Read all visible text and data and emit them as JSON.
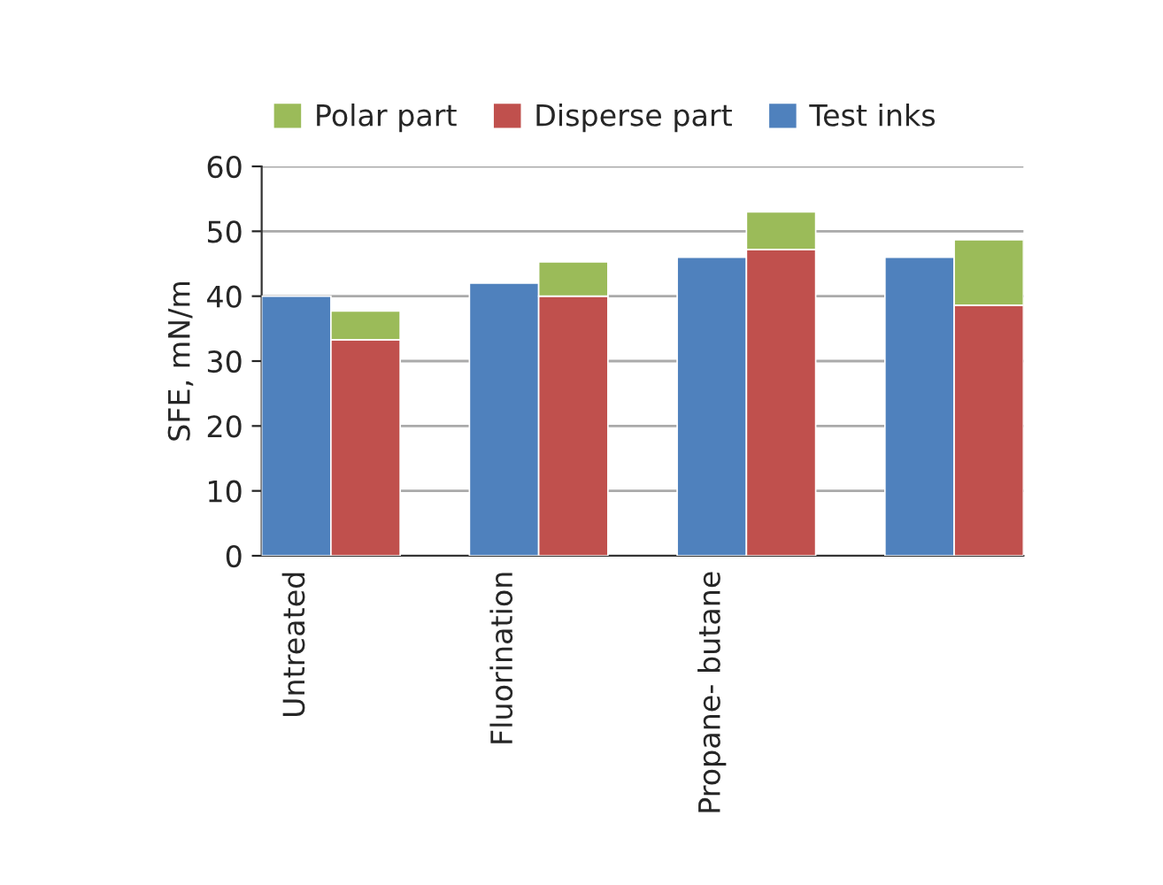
{
  "chart_data": {
    "type": "bar",
    "ylabel": "SFE, mN/m",
    "categories": [
      "Untreated",
      null,
      null,
      "Fluorination",
      null,
      null,
      "Propane- butane",
      null,
      null,
      null,
      null
    ],
    "stacked": true,
    "series": [
      {
        "name": "Test inks",
        "color": "#4f81bd",
        "values": [
          40,
          null,
          null,
          42,
          null,
          null,
          46,
          null,
          null,
          46,
          null
        ]
      },
      {
        "name": "Disperse part",
        "color": "#c0504d",
        "values": [
          null,
          33.3,
          null,
          null,
          40,
          null,
          null,
          47.2,
          null,
          null,
          38.6
        ]
      },
      {
        "name": "Polar part",
        "color": "#9bbb59",
        "values": [
          null,
          4.4,
          null,
          null,
          5.3,
          null,
          null,
          5.8,
          null,
          null,
          10.1
        ]
      }
    ],
    "ylim": [
      0,
      60
    ],
    "yticks": [
      0,
      10,
      20,
      30,
      40,
      50,
      60
    ],
    "grid": "y",
    "legend": "top"
  }
}
